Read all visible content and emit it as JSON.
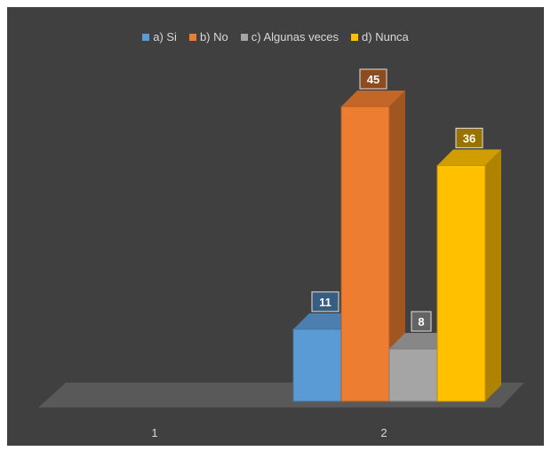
{
  "chart_data": {
    "type": "bar",
    "style": "3d-column",
    "categories": [
      "1",
      "2"
    ],
    "series": [
      {
        "name": "a) Si",
        "values": [
          null,
          11
        ],
        "color": "#5b9bd5"
      },
      {
        "name": "b) No",
        "values": [
          null,
          45
        ],
        "color": "#ed7d31"
      },
      {
        "name": "c) Algunas veces",
        "values": [
          null,
          8
        ],
        "color": "#a5a5a5"
      },
      {
        "name": "d) Nunca",
        "values": [
          null,
          36
        ],
        "color": "#ffc000"
      }
    ],
    "ylim": [
      0,
      45
    ],
    "legend": "top-center",
    "grid": false,
    "data_labels": true,
    "background": "#404040",
    "floor_color": "#595959"
  }
}
